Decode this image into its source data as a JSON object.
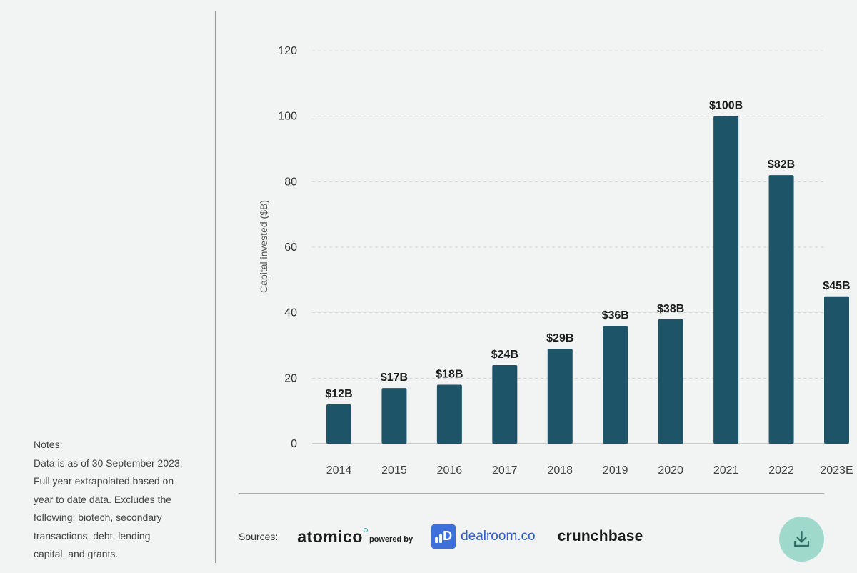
{
  "notes": {
    "heading": "Notes:",
    "lines": [
      "Data is as of 30 September 2023.",
      "Full year extrapolated based on",
      "year to date data. Excludes the",
      "following: biotech, secondary",
      "transactions, debt, lending",
      "capital, and grants."
    ]
  },
  "chart_data": {
    "type": "bar",
    "categories": [
      "2014",
      "2015",
      "2016",
      "2017",
      "2018",
      "2019",
      "2020",
      "2021",
      "2022",
      "2023E"
    ],
    "values": [
      12,
      17,
      18,
      24,
      29,
      36,
      38,
      100,
      82,
      45
    ],
    "data_labels": [
      "$12B",
      "$17B",
      "$18B",
      "$24B",
      "$29B",
      "$36B",
      "$38B",
      "$100B",
      "$82B",
      "$45B"
    ],
    "ylabel": "Capital invested ($B)",
    "ylim": [
      0,
      120
    ],
    "yticks": [
      0,
      20,
      40,
      60,
      80,
      100,
      120
    ],
    "grid": "horizontal dashed",
    "bar_color": "#1e5468"
  },
  "sources": {
    "label": "Sources:",
    "atomico": "atomico",
    "powered_by": "powered by",
    "dealroom": "dealroom.co",
    "dealroom_icon_letter": "D",
    "crunchbase": "crunchbase"
  },
  "download_button": {
    "icon": "download-icon",
    "color": "#9fd9cc"
  }
}
